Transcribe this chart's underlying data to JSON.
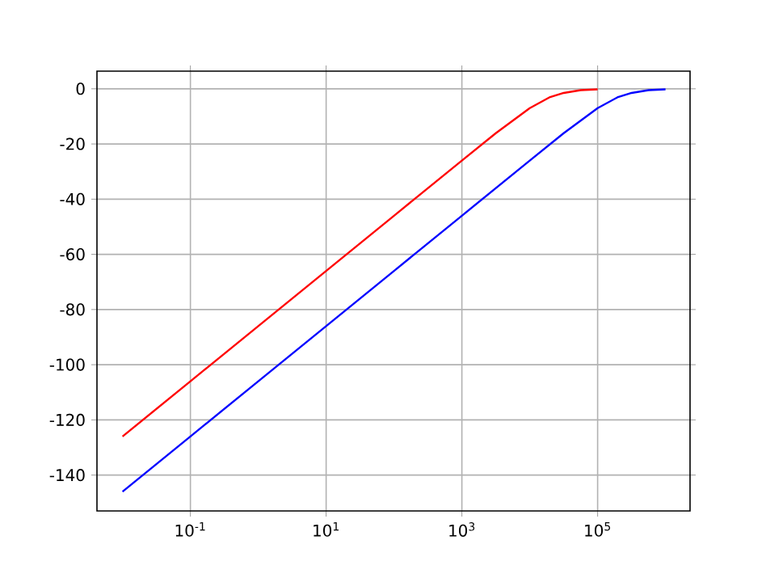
{
  "chart_data": {
    "type": "line",
    "log": "x",
    "grid": true,
    "xlim": [
      0.0042,
      2300000
    ],
    "xticks": [
      {
        "value": 0.1,
        "label": "10$^{-1}$"
      },
      {
        "value": 10,
        "label": "10$^{1}$"
      },
      {
        "value": 1000,
        "label": "10$^{3}$"
      },
      {
        "value": 100000,
        "label": "10$^{5}$"
      }
    ],
    "ylim": [
      -153,
      6.4
    ],
    "yticks": [
      0,
      -20,
      -40,
      -60,
      -80,
      -100,
      -120,
      -140
    ],
    "series": [
      {
        "color": "#ff0000",
        "x": [
          0.01,
          0.1,
          1,
          10,
          100,
          1000,
          3162,
          10000,
          19953,
          31623,
          56234,
          100000
        ],
        "values": [
          -126,
          -106,
          -86,
          -66,
          -46,
          -26,
          -16.1,
          -7,
          -3,
          -1.5,
          -0.5,
          -0.2
        ]
      },
      {
        "color": "#0000ff",
        "x": [
          0.01,
          0.1,
          1,
          10,
          100,
          1000,
          10000,
          31623,
          100000,
          199526,
          316228,
          562341,
          1000000
        ],
        "values": [
          -146,
          -126,
          -106,
          -86,
          -66,
          -46,
          -26,
          -16.1,
          -7,
          -3,
          -1.5,
          -0.5,
          -0.2
        ]
      }
    ]
  }
}
